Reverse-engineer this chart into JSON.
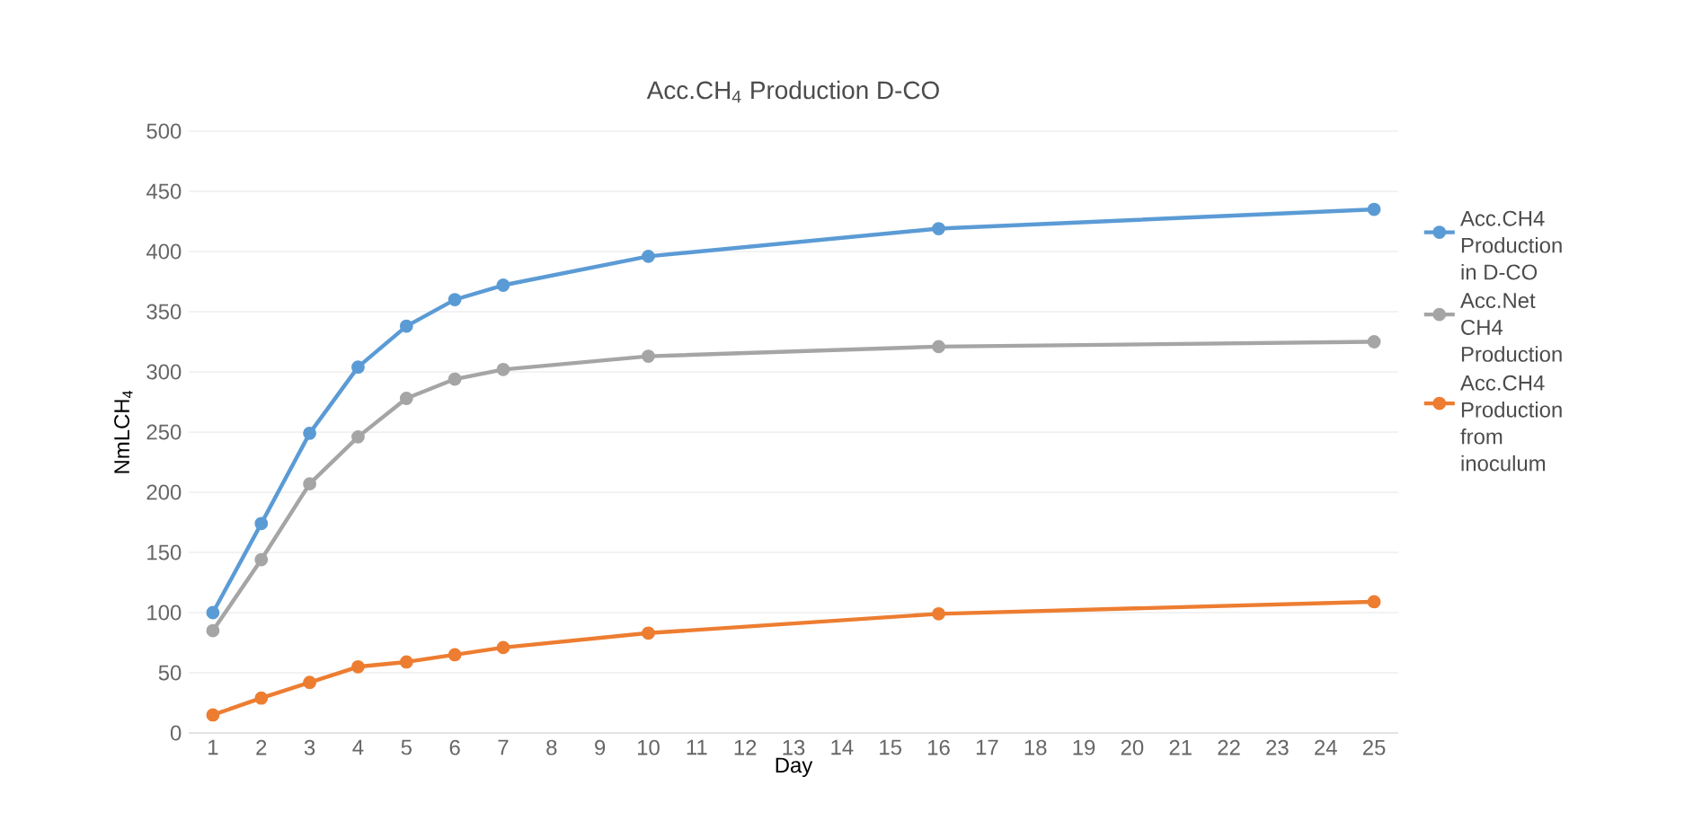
{
  "chart_data": {
    "type": "line",
    "title": "Acc.CH$_{4}$ Production D-CO",
    "xlabel": "Day",
    "ylabel": "NmLCH$_{4}$",
    "x": [
      1,
      2,
      3,
      4,
      5,
      6,
      7,
      10,
      16,
      25
    ],
    "series": [
      {
        "name": "Acc.CH4 Production in D-CO",
        "color": "#5b9bd5",
        "values": [
          100,
          174,
          249,
          304,
          338,
          360,
          372,
          396,
          419,
          435
        ]
      },
      {
        "name": "Acc.Net CH4 Production",
        "color": "#a5a5a5",
        "values": [
          85,
          144,
          207,
          246,
          278,
          294,
          302,
          313,
          321,
          325
        ]
      },
      {
        "name": "Acc.CH4 Production from inoculum",
        "color": "#ed7d31",
        "values": [
          15,
          29,
          42,
          55,
          59,
          65,
          71,
          83,
          99,
          109
        ]
      }
    ],
    "xlim": [
      0.5,
      25.5
    ],
    "xticks": [
      1,
      2,
      3,
      4,
      5,
      6,
      7,
      8,
      9,
      10,
      11,
      12,
      13,
      14,
      15,
      16,
      17,
      18,
      19,
      20,
      21,
      22,
      23,
      24,
      25
    ],
    "ylim": [
      0,
      500
    ],
    "yticks": [
      0,
      50,
      100,
      150,
      200,
      250,
      300,
      350,
      400,
      450,
      500
    ],
    "grid": "y",
    "legend": "right",
    "marker": "circle",
    "line_style": "solid"
  }
}
